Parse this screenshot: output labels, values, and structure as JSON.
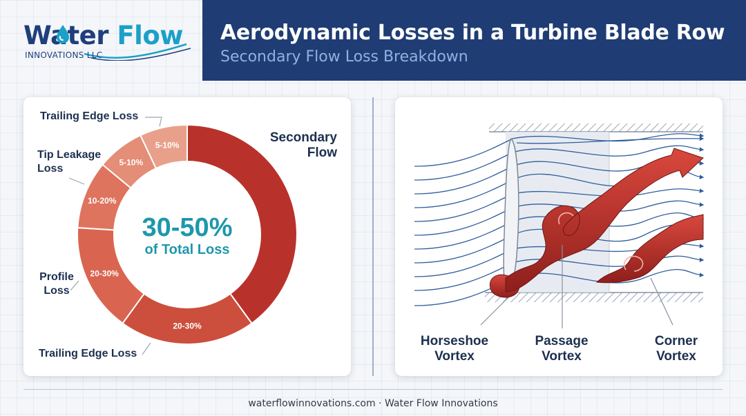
{
  "logo": {
    "name_part1": "Water",
    "name_part2": "Flow",
    "company": "INNOVATIONS LLC"
  },
  "header": {
    "title": "Aerodynamic Losses in a Turbine Blade Row",
    "subtitle": "Secondary Flow Loss Breakdown"
  },
  "donut": {
    "center_value": "30-50%",
    "center_label": "of Total Loss",
    "segments": [
      {
        "label": "Secondary Flow",
        "range_label": "",
        "value": 40,
        "color": "#b8322b"
      },
      {
        "label": "Trailing Edge Loss",
        "range_label": "20-30%",
        "value": 20,
        "color": "#cc4e3c"
      },
      {
        "label": "Profile Loss",
        "range_label": "20-30%",
        "value": 16,
        "color": "#d96551"
      },
      {
        "label": "Tip Leakage Loss",
        "range_label": "10-20%",
        "value": 10,
        "color": "#de745e"
      },
      {
        "label": "",
        "range_label": "5-10%",
        "value": 7,
        "color": "#e48d77"
      },
      {
        "label": "Trailing Edge Loss",
        "range_label": "5-10%",
        "value": 7,
        "color": "#e9a08b"
      }
    ],
    "callouts": {
      "secondary_line1": "Secondary",
      "secondary_line2": "Flow",
      "trailing_top": "Trailing Edge Loss",
      "tip_line1": "Tip Leakage",
      "tip_line2": "Loss",
      "profile_line1": "Profile",
      "profile_line2": "Loss",
      "trailing_bottom": "Trailing Edge Loss"
    }
  },
  "vortex": {
    "horseshoe_line1": "Horseshoe",
    "horseshoe_line2": "Vortex",
    "passage_line1": "Passage",
    "passage_line2": "Vortex",
    "corner_line1": "Corner",
    "corner_line2": "Vortex"
  },
  "footer": {
    "text": "waterflowinnovations.com · Water Flow Innovations"
  }
}
